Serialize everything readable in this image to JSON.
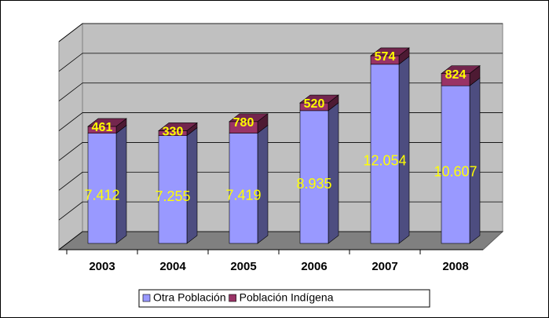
{
  "chart_data": {
    "type": "bar3d_stacked",
    "categories": [
      "2003",
      "2004",
      "2005",
      "2006",
      "2007",
      "2008"
    ],
    "series": [
      {
        "name": "Otra Población",
        "color": "#9999ff",
        "values": [
          7412,
          7255,
          7419,
          8935,
          12054,
          10607
        ],
        "value_labels": [
          "7.412",
          "7.255",
          "7.419",
          "8.935",
          "12.054",
          "10.607"
        ]
      },
      {
        "name": "Población Indígena",
        "color": "#993366",
        "values": [
          461,
          330,
          780,
          520,
          574,
          824
        ]
      }
    ],
    "ylim": [
      0,
      14000
    ],
    "yticks": [
      0,
      2000,
      4000,
      6000,
      8000,
      10000,
      12000,
      14000
    ],
    "grid": true
  }
}
